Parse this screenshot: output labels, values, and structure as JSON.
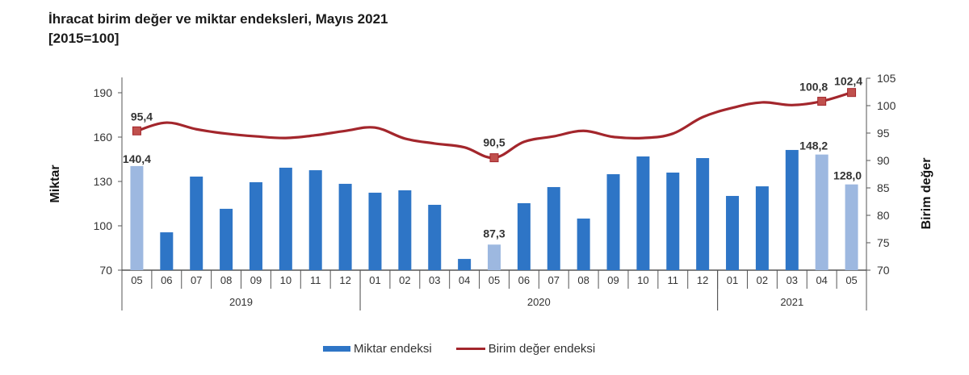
{
  "header": {
    "title": "İhracat birim değer ve miktar endeksleri, Mayıs 2021",
    "subtitle": "[2015=100]"
  },
  "colors": {
    "bar": "#2e75c6",
    "bar_highlight": "#9db8e0",
    "line": "#a3262c"
  },
  "legend": {
    "bar_label": "Miktar endeksi",
    "line_label": "Birim değer endeksi"
  },
  "axes": {
    "left_title": "Miktar",
    "right_title": "Birim değer",
    "left_ticks": [
      "70",
      "100",
      "130",
      "160",
      "190"
    ],
    "right_ticks": [
      "70",
      "75",
      "80",
      "85",
      "90",
      "95",
      "100",
      "105"
    ]
  },
  "chart_data": {
    "type": "bar+line",
    "title": "İhracat birim değer ve miktar endeksleri, Mayıs 2021 [2015=100]",
    "categories": [
      "05",
      "06",
      "07",
      "08",
      "09",
      "10",
      "11",
      "12",
      "01",
      "02",
      "03",
      "04",
      "05",
      "06",
      "07",
      "08",
      "09",
      "10",
      "11",
      "12",
      "01",
      "02",
      "03",
      "04",
      "05"
    ],
    "year_groups": [
      {
        "label": "2019",
        "start": 0,
        "end": 7
      },
      {
        "label": "2020",
        "start": 8,
        "end": 19
      },
      {
        "label": "2021",
        "start": 20,
        "end": 24
      }
    ],
    "series": [
      {
        "name": "Miktar endeksi",
        "type": "bar",
        "axis": "left",
        "values": [
          140.4,
          95.6,
          133.3,
          111.5,
          129.5,
          139.3,
          137.6,
          128.4,
          122.4,
          124.0,
          114.2,
          77.6,
          87.3,
          115.3,
          126.2,
          104.9,
          134.9,
          146.9,
          136.0,
          145.8,
          120.2,
          126.7,
          151.3,
          148.2,
          128.0
        ],
        "highlighted_indices": [
          0,
          12,
          23,
          24
        ]
      },
      {
        "name": "Birim değer endeksi",
        "type": "line",
        "axis": "right",
        "values": [
          95.4,
          96.9,
          95.7,
          94.9,
          94.4,
          94.1,
          94.6,
          95.4,
          96.0,
          94.0,
          93.1,
          92.4,
          90.5,
          93.4,
          94.4,
          95.4,
          94.3,
          94.1,
          94.9,
          97.9,
          99.6,
          100.6,
          100.1,
          100.8,
          102.4
        ],
        "marker_indices": [
          0,
          12,
          23,
          24
        ]
      }
    ],
    "data_labels": {
      "bar": [
        {
          "index": 0,
          "text": "140,4"
        },
        {
          "index": 12,
          "text": "87,3"
        },
        {
          "index": 23,
          "text": "148,2"
        },
        {
          "index": 24,
          "text": "128,0"
        }
      ],
      "line": [
        {
          "index": 0,
          "text": "95,4"
        },
        {
          "index": 12,
          "text": "90,5"
        },
        {
          "index": 23,
          "text": "100,8"
        },
        {
          "index": 24,
          "text": "102,4"
        }
      ]
    },
    "xlabel": "",
    "ylabel": "Miktar",
    "y2label": "Birim değer",
    "ylim": [
      70,
      190
    ],
    "y2lim": [
      70,
      105
    ],
    "grid": false,
    "legend_position": "bottom"
  }
}
